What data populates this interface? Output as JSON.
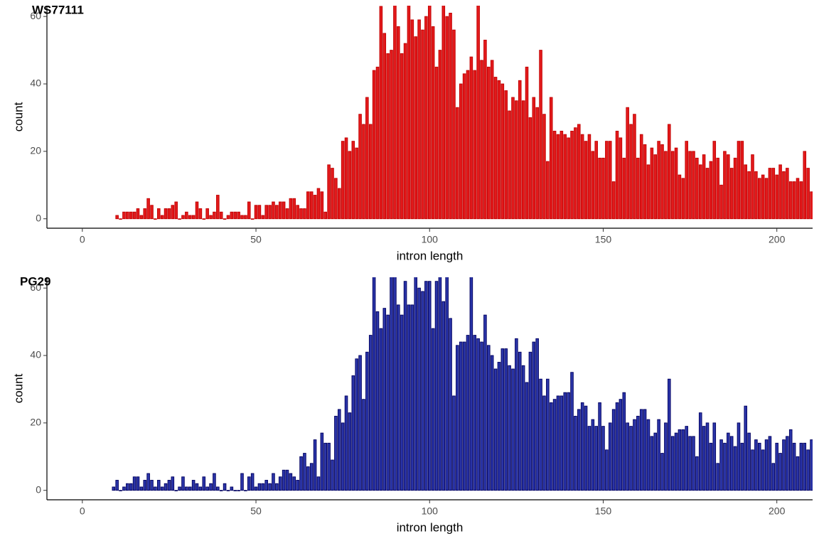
{
  "chart_data": [
    {
      "type": "bar",
      "title": "WS77111",
      "xlabel": "intron length",
      "ylabel": "count",
      "color": "#e31a1c",
      "edgecolor": "#c00000",
      "xlim": [
        -10.2,
        210.3
      ],
      "ylim": [
        -2.8,
        63.2
      ],
      "xticks": [
        0,
        50,
        100,
        150,
        200
      ],
      "yticks": [
        0,
        20,
        40,
        60
      ],
      "x": [
        10,
        11,
        12,
        13,
        14,
        15,
        16,
        17,
        18,
        19,
        20,
        21,
        22,
        23,
        24,
        25,
        26,
        27,
        28,
        29,
        30,
        31,
        32,
        33,
        34,
        35,
        36,
        37,
        38,
        39,
        40,
        41,
        42,
        43,
        44,
        45,
        46,
        47,
        48,
        49,
        50,
        51,
        52,
        53,
        54,
        55,
        56,
        57,
        58,
        59,
        60,
        61,
        62,
        63,
        64,
        65,
        66,
        67,
        68,
        69,
        70,
        71,
        72,
        73,
        74,
        75,
        76,
        77,
        78,
        79,
        80,
        81,
        82,
        83,
        84,
        85,
        86,
        87,
        88,
        89,
        90,
        91,
        92,
        93,
        94,
        95,
        96,
        97,
        98,
        99,
        100,
        101,
        102,
        103,
        104,
        105,
        106,
        107,
        108,
        109,
        110,
        111,
        112,
        113,
        114,
        115,
        116,
        117,
        118,
        119,
        120,
        121,
        122,
        123,
        124,
        125,
        126,
        127,
        128,
        129,
        130,
        131,
        132,
        133,
        134,
        135,
        136,
        137,
        138,
        139,
        140,
        141,
        142,
        143,
        144,
        145,
        146,
        147,
        148,
        149,
        150,
        151,
        152,
        153,
        154,
        155,
        156,
        157,
        158,
        159,
        160,
        161,
        162,
        163,
        164,
        165,
        166,
        167,
        168,
        169,
        170,
        171,
        172,
        173,
        174,
        175,
        176,
        177,
        178,
        179,
        180,
        181,
        182,
        183,
        184,
        185,
        186,
        187,
        188,
        189,
        190,
        191,
        192,
        193,
        194,
        195,
        196,
        197,
        198,
        199,
        200,
        201,
        202,
        203,
        204,
        205,
        206,
        207,
        208,
        209,
        210
      ],
      "values": [
        1,
        0,
        2,
        2,
        2,
        2,
        3,
        1,
        3,
        6,
        4,
        0,
        3,
        1,
        3,
        3,
        4,
        5,
        0,
        1,
        2,
        1,
        1,
        5,
        3,
        0,
        3,
        1,
        2,
        7,
        2,
        0,
        1,
        2,
        2,
        2,
        1,
        1,
        5,
        0,
        4,
        4,
        1,
        4,
        4,
        5,
        4,
        5,
        5,
        3,
        6,
        6,
        4,
        3,
        3,
        8,
        8,
        7,
        9,
        8,
        2,
        16,
        15,
        12,
        9,
        23,
        24,
        20,
        23,
        21,
        31,
        28,
        36,
        28,
        44,
        45,
        63,
        55,
        49,
        50,
        65,
        57,
        49,
        52,
        65,
        59,
        54,
        59,
        56,
        60,
        65,
        57,
        45,
        50,
        65,
        60,
        61,
        56,
        33,
        40,
        43,
        44,
        48,
        44,
        65,
        47,
        53,
        45,
        47,
        42,
        41,
        40,
        38,
        32,
        36,
        35,
        41,
        35,
        45,
        30,
        36,
        33,
        50,
        31,
        17,
        36,
        26,
        25,
        26,
        25,
        24,
        26,
        27,
        28,
        25,
        23,
        25,
        20,
        23,
        18,
        18,
        23,
        23,
        11,
        26,
        24,
        18,
        33,
        28,
        31,
        18,
        25,
        22,
        16,
        21,
        19,
        23,
        22,
        20,
        28,
        20,
        21,
        13,
        12,
        23,
        20,
        20,
        18,
        16,
        19,
        15,
        17,
        23,
        18,
        10,
        20,
        19,
        15,
        18,
        23,
        23,
        16,
        14,
        19,
        14,
        12,
        13,
        12,
        15,
        15,
        13,
        16,
        14,
        15,
        11,
        11,
        12,
        11,
        20,
        15,
        8
      ]
    },
    {
      "type": "bar",
      "title": "PG29",
      "xlabel": "intron length",
      "ylabel": "count",
      "color": "#2b35a8",
      "edgecolor": "#000060",
      "xlim": [
        -10.2,
        210.3
      ],
      "ylim": [
        -2.8,
        63.2
      ],
      "xticks": [
        0,
        50,
        100,
        150,
        200
      ],
      "yticks": [
        0,
        20,
        40,
        60
      ],
      "x": [
        9,
        10,
        11,
        12,
        13,
        14,
        15,
        16,
        17,
        18,
        19,
        20,
        21,
        22,
        23,
        24,
        25,
        26,
        27,
        28,
        29,
        30,
        31,
        32,
        33,
        34,
        35,
        36,
        37,
        38,
        39,
        40,
        41,
        42,
        43,
        44,
        45,
        46,
        47,
        48,
        49,
        50,
        51,
        52,
        53,
        54,
        55,
        56,
        57,
        58,
        59,
        60,
        61,
        62,
        63,
        64,
        65,
        66,
        67,
        68,
        69,
        70,
        71,
        72,
        73,
        74,
        75,
        76,
        77,
        78,
        79,
        80,
        81,
        82,
        83,
        84,
        85,
        86,
        87,
        88,
        89,
        90,
        91,
        92,
        93,
        94,
        95,
        96,
        97,
        98,
        99,
        100,
        101,
        102,
        103,
        104,
        105,
        106,
        107,
        108,
        109,
        110,
        111,
        112,
        113,
        114,
        115,
        116,
        117,
        118,
        119,
        120,
        121,
        122,
        123,
        124,
        125,
        126,
        127,
        128,
        129,
        130,
        131,
        132,
        133,
        134,
        135,
        136,
        137,
        138,
        139,
        140,
        141,
        142,
        143,
        144,
        145,
        146,
        147,
        148,
        149,
        150,
        151,
        152,
        153,
        154,
        155,
        156,
        157,
        158,
        159,
        160,
        161,
        162,
        163,
        164,
        165,
        166,
        167,
        168,
        169,
        170,
        171,
        172,
        173,
        174,
        175,
        176,
        177,
        178,
        179,
        180,
        181,
        182,
        183,
        184,
        185,
        186,
        187,
        188,
        189,
        190,
        191,
        192,
        193,
        194,
        195,
        196,
        197,
        198,
        199,
        200,
        201,
        202,
        203,
        204,
        205,
        206,
        207,
        208,
        209,
        210
      ],
      "values": [
        1,
        3,
        0,
        1,
        2,
        2,
        4,
        4,
        1,
        3,
        5,
        3,
        1,
        3,
        1,
        2,
        3,
        4,
        0,
        1,
        4,
        1,
        1,
        3,
        2,
        1,
        4,
        1,
        2,
        5,
        1,
        0,
        2,
        0,
        1,
        0,
        0,
        5,
        0,
        4,
        5,
        1,
        2,
        2,
        3,
        2,
        5,
        2,
        4,
        6,
        6,
        5,
        4,
        3,
        10,
        11,
        7,
        8,
        15,
        4,
        17,
        14,
        14,
        9,
        22,
        24,
        20,
        28,
        23,
        34,
        39,
        40,
        27,
        41,
        46,
        65,
        53,
        48,
        54,
        52,
        65,
        65,
        55,
        52,
        62,
        55,
        55,
        65,
        60,
        59,
        62,
        62,
        48,
        62,
        65,
        56,
        65,
        51,
        28,
        43,
        44,
        44,
        46,
        65,
        46,
        45,
        44,
        52,
        43,
        40,
        36,
        38,
        42,
        42,
        37,
        36,
        45,
        41,
        37,
        32,
        41,
        44,
        45,
        33,
        28,
        33,
        26,
        27,
        28,
        28,
        29,
        29,
        35,
        22,
        24,
        26,
        25,
        19,
        21,
        19,
        26,
        19,
        12,
        20,
        24,
        26,
        27,
        29,
        20,
        19,
        21,
        22,
        24,
        24,
        21,
        16,
        17,
        21,
        11,
        20,
        33,
        16,
        17,
        18,
        18,
        19,
        16,
        16,
        10,
        23,
        19,
        20,
        14,
        20,
        8,
        15,
        14,
        17,
        16,
        13,
        20,
        14,
        25,
        17,
        12,
        15,
        14,
        12,
        15,
        16,
        8,
        14,
        11,
        15,
        16,
        18,
        14,
        10,
        14,
        14,
        12,
        15
      ]
    }
  ]
}
